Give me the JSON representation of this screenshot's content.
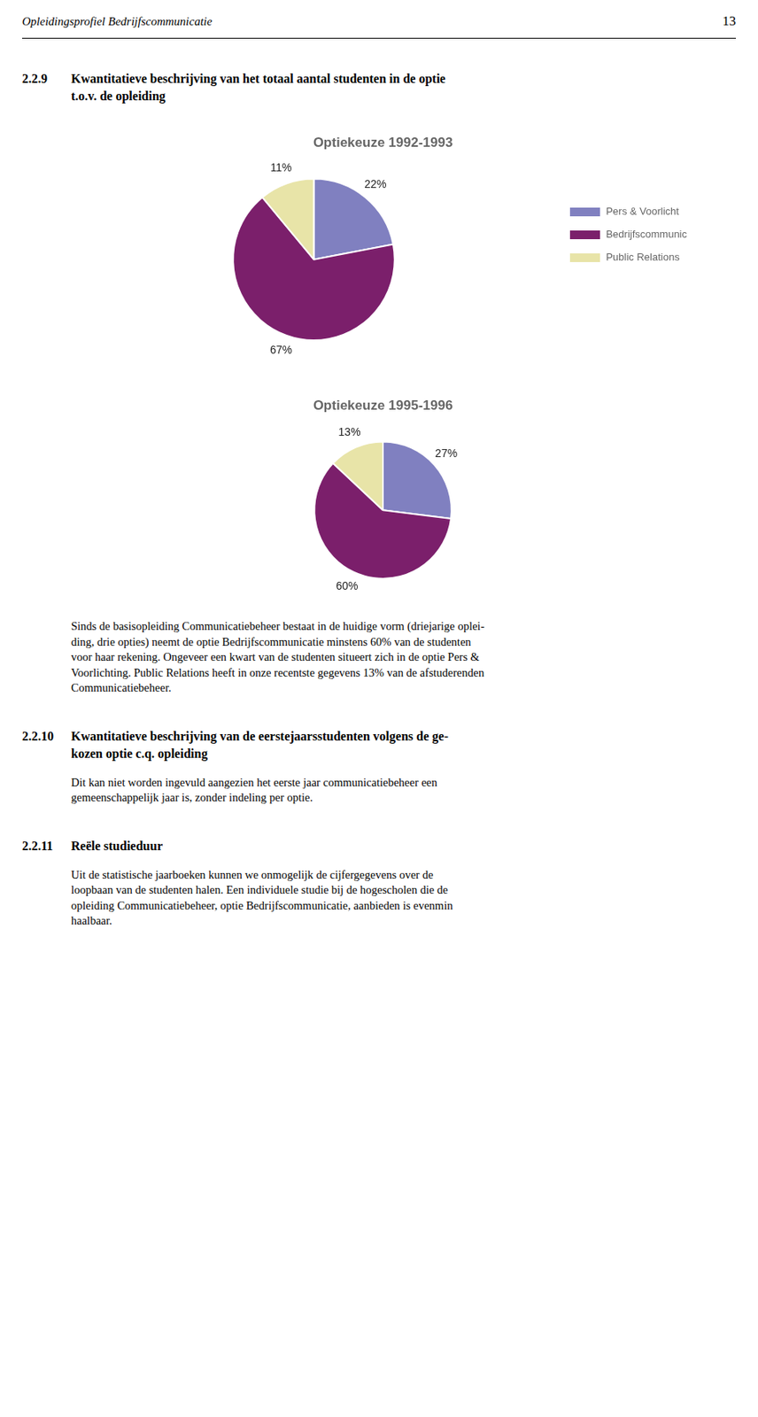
{
  "annotations": [
    [
      "Opleidingsprofiel Bedrijfscommunicatie",
      "13"
    ],
    [
      "2.2.9",
      "Kwantitatieve beschrijving van het totaal aantal studenten in de optie",
      "t.o.v. de opleiding"
    ],
    [
      "Sinds de basisopleiding Communicatiebeheer bestaat in de huidige vorm (driejarige oplei-",
      "ding, drie opties) neemt de optie Bedrijfscommunicatie minstens 60% van de studenten",
      "voor haar rekening. Ongeveer een kwart van de studenten situeert zich in de optie Pers &",
      "Voorlichting. Public Relations heeft in onze recentste gegevens 13% van de afstuderenden",
      "Communicatiebeheer."
    ],
    [
      "2.2.10",
      "Kwantitatieve beschrijving van de eerstejaarsstudenten volgens de ge-",
      "kozen optie c.q. opleiding"
    ],
    [
      "Dit kan niet worden ingevuld aangezien het eerste jaar communicatiebeheer een",
      "gemeenschappelijk jaar is, zonder indeling per optie."
    ],
    [
      "2.2.11",
      "Reële studieduur"
    ],
    [
      "Uit de statistische jaarboeken kunnen we onmogelijk de cijfergegevens over de",
      "loopbaan van de studenten halen. Een individuele studie bij de hogescholen die de",
      "opleiding Communicatiebeheer, optie Bedrijfscommunicatie, aanbieden is evenmin",
      "haalbaar."
    ]
  ],
  "chart_data": [
    {
      "type": "pie",
      "title": "Optiekeuze 1992-1993",
      "categories": [
        "Pers & Voorlicht",
        "Bedrijfscommunic",
        "Public Relations"
      ],
      "values": [
        22,
        67,
        11
      ],
      "value_labels": [
        "22%",
        "67%",
        "11%"
      ],
      "colors": [
        "#8080C0",
        "#7B1F6B",
        "#E8E4A8"
      ],
      "data_labels": true,
      "legend": "right"
    },
    {
      "type": "pie",
      "title": "Optiekeuze 1995-1996",
      "categories": [
        "Pers & Voorlicht",
        "Bedrijfscommunic",
        "Public Relations"
      ],
      "values": [
        27,
        60,
        13
      ],
      "value_labels": [
        "27%",
        "60%",
        "13%"
      ],
      "colors": [
        "#8080C0",
        "#7B1F6B",
        "#E8E4A8"
      ],
      "data_labels": true
    }
  ]
}
